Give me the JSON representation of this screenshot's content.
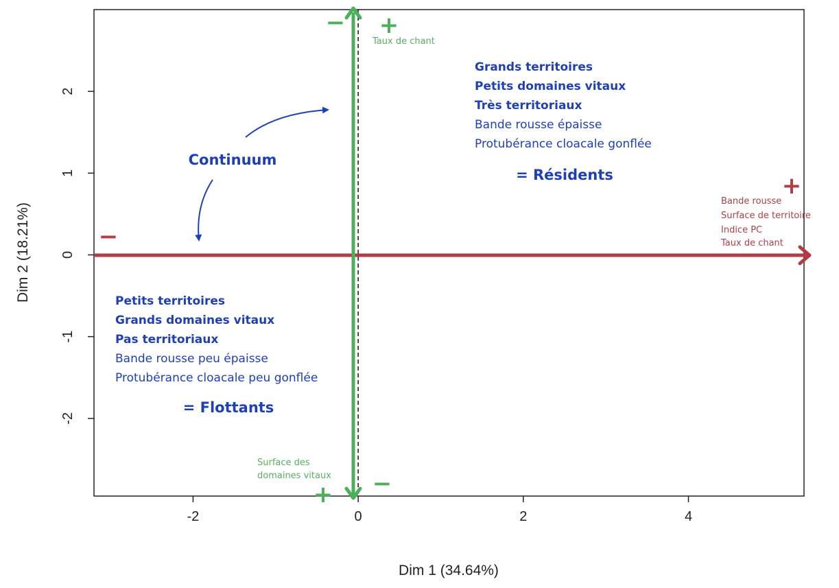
{
  "chart_data": {
    "type": "scatter",
    "xlabel": "Dim 1 (34.64%)",
    "ylabel": "Dim 2 (18.21%)",
    "xlim": [
      -3.2,
      5.4
    ],
    "ylim": [
      -2.95,
      3.0
    ],
    "x_ticks": [
      -2,
      0,
      2,
      4
    ],
    "y_ticks": [
      -2,
      -1,
      0,
      1,
      2
    ],
    "x_tick_labels": [
      "-2",
      "0",
      "2",
      "4"
    ],
    "y_tick_labels": [
      "-2",
      "-1",
      "0",
      "1",
      "2"
    ],
    "grid": false,
    "legend": "none",
    "dim1_axis": {
      "color": "#b23b46",
      "minus_sign": "−",
      "plus_sign": "+",
      "labels": [
        "Bande rousse",
        "Surface de territoire",
        "Indice PC",
        "Taux de chant"
      ]
    },
    "dim2_axis": {
      "color": "#4cb05a",
      "top_signs": [
        "−",
        "+"
      ],
      "bottom_signs": [
        "+",
        "−"
      ],
      "top_label": "Taux de chant",
      "bottom_labels": [
        "Surface des",
        "domaines vitaux"
      ]
    },
    "continuum_label": "Continuum",
    "residents": {
      "bold_lines": [
        "Grands territoires",
        "Petits domaines vitaux",
        "Très territoriaux"
      ],
      "lines": [
        "Bande rousse épaisse",
        "Protubérance cloacale gonflée"
      ],
      "summary": "= Résidents"
    },
    "floaters": {
      "bold_lines": [
        "Petits territoires",
        "Grands domaines vitaux",
        "Pas territoriaux"
      ],
      "lines": [
        "Bande rousse peu épaisse",
        "Protubérance cloacale peu gonflée"
      ],
      "summary": "= Flottants"
    }
  }
}
